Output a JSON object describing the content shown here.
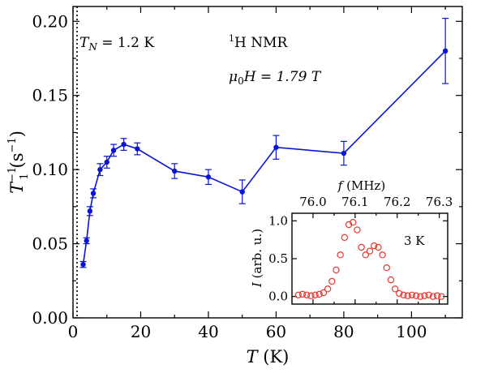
{
  "chart_data": [
    {
      "type": "line",
      "series": [
        {
          "color": "#0a14d6",
          "x": [
            3,
            4,
            5,
            6,
            8,
            10,
            12,
            15,
            19,
            30,
            40,
            50,
            60,
            80,
            110
          ],
          "y": [
            0.036,
            0.052,
            0.072,
            0.084,
            0.1,
            0.105,
            0.113,
            0.117,
            0.114,
            0.099,
            0.095,
            0.085,
            0.115,
            0.111,
            0.18
          ],
          "yerr": [
            0.002,
            0.002,
            0.003,
            0.003,
            0.004,
            0.004,
            0.004,
            0.004,
            0.004,
            0.005,
            0.005,
            0.008,
            0.008,
            0.008,
            0.022
          ]
        }
      ],
      "xlabel_main": "T",
      "xlabel_unit": " (K)",
      "ylabel_base": "T",
      "ylabel_sup": "−1",
      "ylabel_sub": "1",
      "ylabel_unit": "(s",
      "ylabel_unit_sup": "−1",
      "ylabel_unit_close": ")",
      "xlim": [
        0,
        115
      ],
      "ylim": [
        0.0,
        0.21
      ],
      "xticks": [
        0,
        20,
        40,
        60,
        80,
        100
      ],
      "xticklabels": [
        "0",
        "20",
        "40",
        "60",
        "80",
        "100"
      ],
      "yticks": [
        0.0,
        0.05,
        0.1,
        0.15,
        0.2
      ],
      "yticklabels": [
        "0.00",
        "0.05",
        "0.10",
        "0.15",
        "0.20"
      ],
      "vline_x": 1.2,
      "annotations": {
        "tn_main": "T",
        "tn_sub": "N",
        "tn_value": " = 1.2 K",
        "nmr_sup": "1",
        "nmr_text": "H NMR",
        "field_mu": "μ",
        "field_sub": "0",
        "field_text": "H = 1.79 T"
      },
      "grid": false
    },
    {
      "type": "scatter",
      "series": [
        {
          "color": "#e8372f",
          "x": [
            75.965,
            75.975,
            75.985,
            75.995,
            76.005,
            76.015,
            76.025,
            76.035,
            76.045,
            76.055,
            76.065,
            76.075,
            76.085,
            76.095,
            76.105,
            76.115,
            76.125,
            76.135,
            76.145,
            76.155,
            76.165,
            76.175,
            76.185,
            76.195,
            76.205,
            76.215,
            76.225,
            76.235,
            76.245,
            76.255,
            76.265,
            76.275,
            76.285,
            76.295,
            76.305
          ],
          "y": [
            0.02,
            0.03,
            0.02,
            0.01,
            0.02,
            0.03,
            0.05,
            0.1,
            0.2,
            0.35,
            0.55,
            0.78,
            0.95,
            0.98,
            0.88,
            0.65,
            0.55,
            0.6,
            0.67,
            0.65,
            0.55,
            0.38,
            0.22,
            0.1,
            0.04,
            0.02,
            0.01,
            0.02,
            0.01,
            0.0,
            0.01,
            0.02,
            0.0,
            0.01,
            0.0
          ]
        }
      ],
      "xlabel_main": "f",
      "xlabel_unit": " (MHz)",
      "ylabel_main": "I",
      "ylabel_unit": " (arb. u.)",
      "xlim": [
        75.95,
        76.32
      ],
      "ylim": [
        -0.1,
        1.1
      ],
      "xticks": [
        76.0,
        76.1,
        76.2,
        76.3
      ],
      "xticklabels": [
        "76.0",
        "76.1",
        "76.2",
        "76.3"
      ],
      "yticks": [
        0.0,
        0.5,
        1.0
      ],
      "yticklabels": [
        "0.0",
        "0.5",
        "1.0"
      ],
      "annotation": "3 K",
      "grid": false
    }
  ]
}
